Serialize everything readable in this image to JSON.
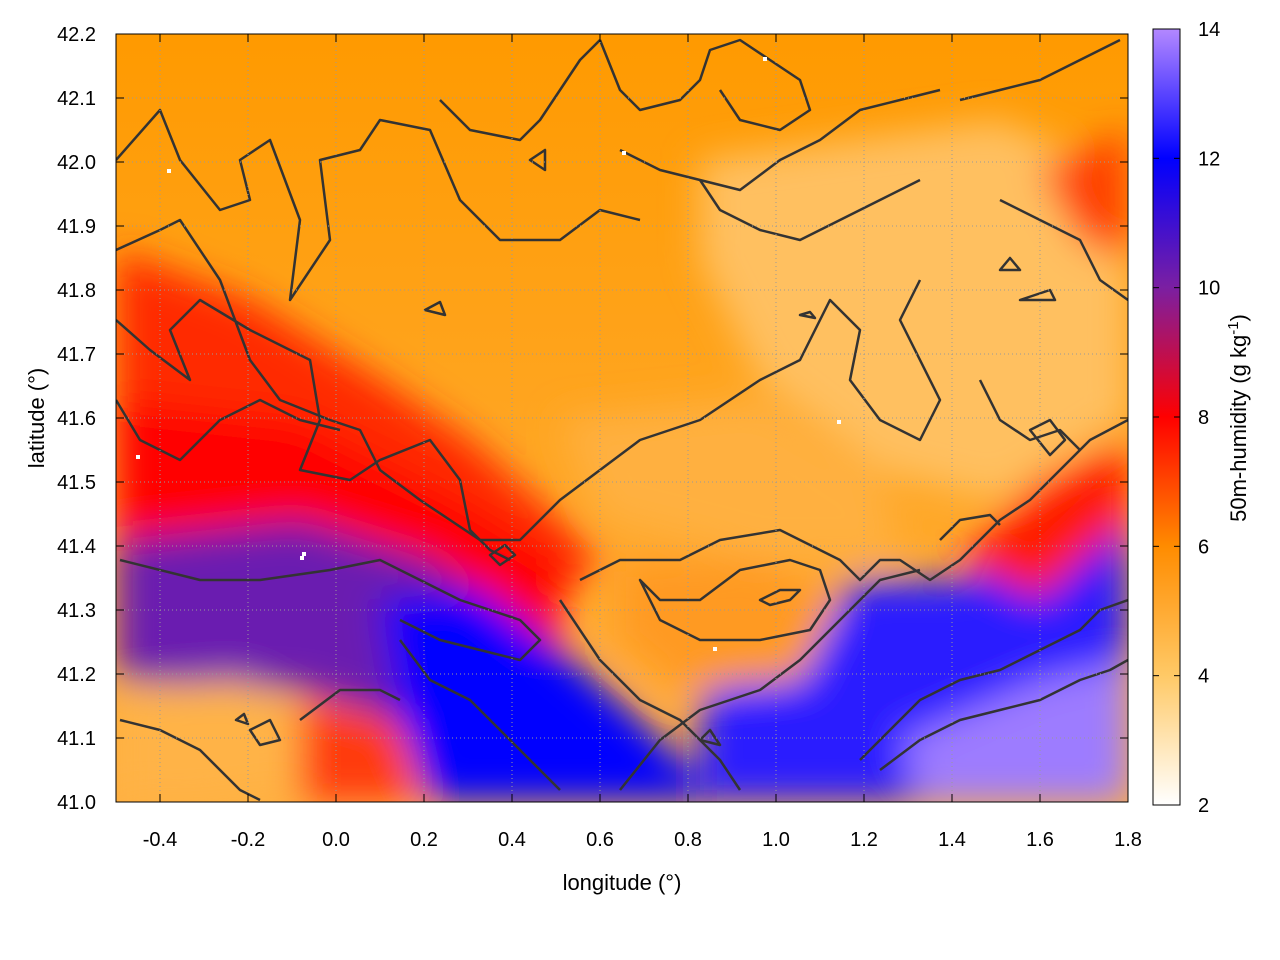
{
  "chart_data": {
    "type": "heatmap",
    "xlabel": "longitude (°)",
    "ylabel": "latitude (°)",
    "colorbar_label": "50m-humidity (g kg",
    "colorbar_label_exp": "-1",
    "colorbar_label_close": ")",
    "xlim": [
      -0.5,
      1.8
    ],
    "ylim": [
      41.0,
      42.2
    ],
    "clim": [
      2,
      14
    ],
    "x_ticks": [
      "-0.4",
      "-0.2",
      "0.0",
      "0.2",
      "0.4",
      "0.6",
      "0.8",
      "1.0",
      "1.2",
      "1.4",
      "1.6",
      "1.8"
    ],
    "x_tick_values": [
      -0.4,
      -0.2,
      0.0,
      0.2,
      0.4,
      0.6,
      0.8,
      1.0,
      1.2,
      1.4,
      1.6,
      1.8
    ],
    "y_ticks": [
      "41.0",
      "41.1",
      "41.2",
      "41.3",
      "41.4",
      "41.5",
      "41.6",
      "41.7",
      "41.8",
      "41.9",
      "42.0",
      "42.1",
      "42.2"
    ],
    "y_tick_values": [
      41.0,
      41.1,
      41.2,
      41.3,
      41.4,
      41.5,
      41.6,
      41.7,
      41.8,
      41.9,
      42.0,
      42.1,
      42.2
    ],
    "colorbar_ticks": [
      "2",
      "4",
      "6",
      "8",
      "10",
      "12",
      "14"
    ],
    "colorbar_tick_values": [
      2,
      4,
      6,
      8,
      10,
      12,
      14
    ],
    "grid": true,
    "colormap": [
      "#ffffff",
      "#ffa500",
      "#ff0000",
      "#7b1fa2",
      "#0000ff",
      "#b388ff"
    ],
    "contour_color": "#333333",
    "humidity_field_lonlat": [
      {
        "lon": -0.5,
        "lat": 42.2,
        "value": 5.5
      },
      {
        "lon": 0.5,
        "lat": 41.9,
        "value": 5.0
      },
      {
        "lon": 1.3,
        "lat": 41.8,
        "value": 4.2
      },
      {
        "lon": -0.3,
        "lat": 41.5,
        "value": 8.0
      },
      {
        "lon": -0.1,
        "lat": 41.33,
        "value": 9.8
      },
      {
        "lon": 0.45,
        "lat": 41.25,
        "value": 11.0
      },
      {
        "lon": 0.8,
        "lat": 41.3,
        "value": 4.5
      },
      {
        "lon": 1.4,
        "lat": 41.2,
        "value": 12.0
      },
      {
        "lon": 1.7,
        "lat": 41.1,
        "value": 13.0
      },
      {
        "lon": -0.3,
        "lat": 41.1,
        "value": 4.5
      }
    ]
  }
}
